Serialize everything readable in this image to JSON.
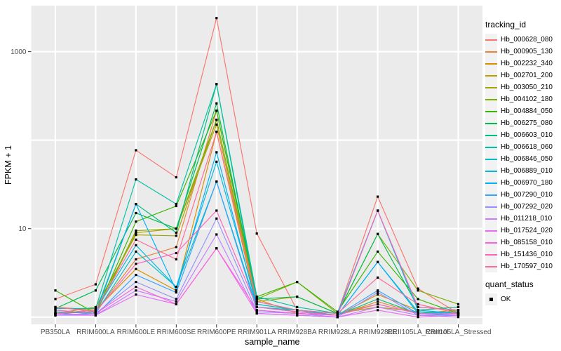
{
  "figure": {
    "background": "#FFFFFF",
    "panel_background": "#EBEBEB",
    "gridline_color": "#FFFFFF",
    "tick_label_color": "#4D4D4D",
    "text_color": "#000000"
  },
  "chart_data": {
    "type": "line",
    "xlabel": "sample_name",
    "ylabel": "FPKM + 1",
    "y_scale": "log10",
    "ylim": [
      1,
      3300
    ],
    "y_ticks": [
      {
        "label": "1000",
        "value": 1000
      },
      {
        "label": "10",
        "value": 10
      }
    ],
    "y_gridlines": [
      1,
      10,
      100,
      1000
    ],
    "grid": "on",
    "point_marker": "square",
    "point_color": "#000000",
    "legend_position": "right",
    "categories": [
      "PB350LA",
      "RRIM600LA",
      "RRIM600LE",
      "RRIM600SE",
      "RRIM600PE",
      "RRIM901LA",
      "RRIM928BA",
      "RRIM928LA",
      "RRIM928LE",
      "RRII105LA_Control",
      "RRII105LA_Stressed"
    ],
    "series": [
      {
        "name": "Hb_000628_080",
        "color": "#F8766D",
        "values": [
          1.6,
          2.35,
          77,
          38,
          2400,
          8.8,
          1.2,
          1.1,
          23,
          2.1,
          1.1
        ]
      },
      {
        "name": "Hb_000905_130",
        "color": "#EB8335",
        "values": [
          1.1,
          1.15,
          4.5,
          6.2,
          215,
          1.6,
          1.1,
          1.05,
          1.5,
          1.1,
          1.05
        ]
      },
      {
        "name": "Hb_002232_340",
        "color": "#D89000",
        "values": [
          1.3,
          1.2,
          3.5,
          2.0,
          124,
          1.3,
          1.15,
          1.05,
          1.8,
          1.2,
          1.3
        ]
      },
      {
        "name": "Hb_002701_200",
        "color": "#C09B00",
        "values": [
          1.05,
          1.1,
          9.0,
          10.0,
          150,
          1.4,
          1.2,
          1.1,
          1.4,
          1.1,
          1.2
        ]
      },
      {
        "name": "Hb_003050_210",
        "color": "#A3A500",
        "values": [
          1.1,
          1.3,
          8.5,
          8.3,
          170,
          1.5,
          1.7,
          1.1,
          1.3,
          1.15,
          1.1
        ]
      },
      {
        "name": "Hb_004102_180",
        "color": "#7CAE00",
        "values": [
          1.2,
          1.1,
          9.5,
          10.0,
          170,
          1.6,
          2.5,
          1.1,
          8.7,
          2.0,
          1.4
        ]
      },
      {
        "name": "Hb_004884_050",
        "color": "#39B600",
        "values": [
          2.0,
          1.1,
          12,
          18,
          215,
          1.7,
          2.5,
          1.15,
          5.5,
          1.6,
          1.1
        ]
      },
      {
        "name": "Hb_006275_080",
        "color": "#00BB4E",
        "values": [
          1.25,
          2.0,
          15,
          10,
          260,
          1.6,
          1.7,
          1.1,
          8.7,
          1.3,
          1.2
        ]
      },
      {
        "name": "Hb_006603_010",
        "color": "#00BF7D",
        "values": [
          1.1,
          1.15,
          19,
          9.0,
          430,
          1.5,
          1.2,
          1.05,
          1.6,
          1.1,
          1.15
        ]
      },
      {
        "name": "Hb_006618_060",
        "color": "#00C1A3",
        "values": [
          1.25,
          1.25,
          36,
          19,
          430,
          1.7,
          1.3,
          1.1,
          16,
          1.2,
          1.3
        ]
      },
      {
        "name": "Hb_006846_050",
        "color": "#00BFC4",
        "values": [
          1.15,
          1.1,
          5.5,
          2.2,
          34,
          1.3,
          1.2,
          1.05,
          4.2,
          1.15,
          1.1
        ]
      },
      {
        "name": "Hb_006889_010",
        "color": "#00BAE0",
        "values": [
          1.1,
          1.2,
          6.5,
          2.2,
          57,
          1.4,
          1.2,
          1.1,
          16,
          1.2,
          1.1
        ]
      },
      {
        "name": "Hb_006970_180",
        "color": "#00B0F6",
        "values": [
          1.05,
          1.1,
          19,
          2.0,
          73,
          1.3,
          1.15,
          1.05,
          4.2,
          1.1,
          1.05
        ]
      },
      {
        "name": "Hb_007290_010",
        "color": "#35A2FF",
        "values": [
          1.1,
          1.05,
          3.0,
          1.9,
          34,
          1.2,
          1.1,
          1.05,
          2.0,
          1.1,
          1.1
        ]
      },
      {
        "name": "Hb_007292_020",
        "color": "#9590FF",
        "values": [
          1.05,
          1.1,
          2.5,
          1.6,
          13,
          1.15,
          1.1,
          1.0,
          1.9,
          1.05,
          1.05
        ]
      },
      {
        "name": "Hb_011218_010",
        "color": "#C77CFF",
        "values": [
          1.05,
          1.05,
          2.0,
          1.5,
          8.6,
          1.1,
          1.05,
          1.0,
          1.3,
          1.05,
          1.0
        ]
      },
      {
        "name": "Hb_017524_020",
        "color": "#E76BF3",
        "values": [
          1.1,
          1.05,
          1.8,
          1.4,
          6.0,
          1.1,
          1.05,
          1.0,
          1.2,
          1.0,
          1.05
        ]
      },
      {
        "name": "Hb_085158_010",
        "color": "#FA62DB",
        "values": [
          1.2,
          1.1,
          2.2,
          1.4,
          6.0,
          1.2,
          1.1,
          1.05,
          1.4,
          1.1,
          1.1
        ]
      },
      {
        "name": "Hb_151436_010",
        "color": "#FF62BC",
        "values": [
          1.3,
          1.15,
          4.0,
          5.3,
          16,
          1.3,
          1.15,
          1.05,
          16,
          1.3,
          1.2
        ]
      },
      {
        "name": "Hb_170597_010",
        "color": "#FF6A98",
        "values": [
          1.1,
          1.2,
          7.5,
          4.5,
          124,
          1.5,
          1.2,
          1.1,
          2.8,
          1.4,
          1.1
        ]
      }
    ],
    "legend": {
      "tracking_title": "tracking_id",
      "quant_title": "quant_status",
      "quant_items": [
        {
          "label": "OK",
          "marker": "square",
          "color": "#000000"
        }
      ]
    }
  }
}
